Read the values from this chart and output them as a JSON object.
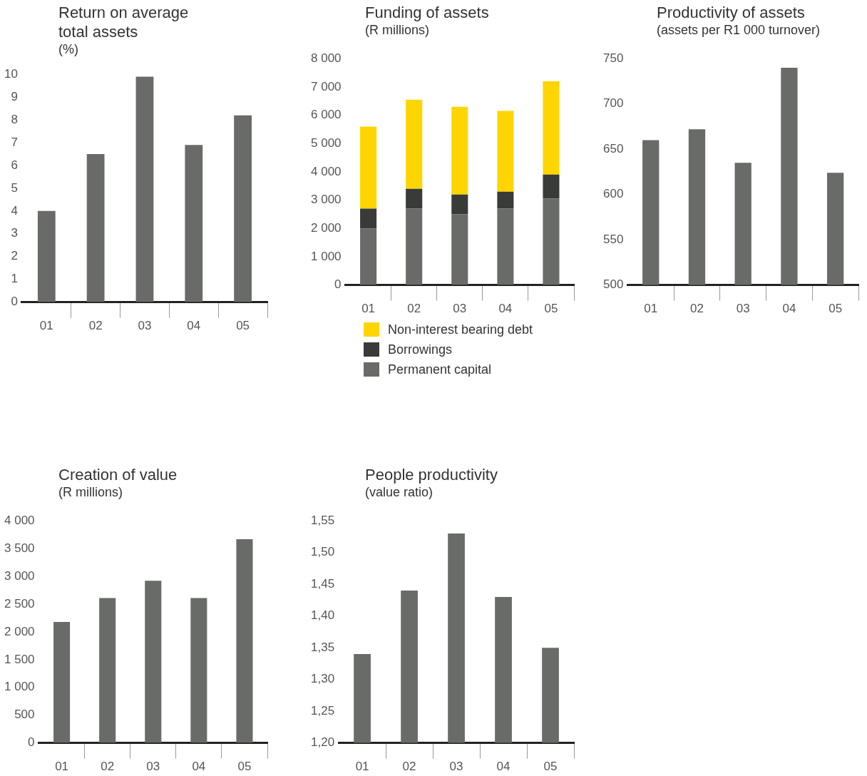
{
  "chart_data": [
    {
      "type": "bar",
      "title": "Return on average total assets",
      "subtitle": "(%)",
      "categories": [
        "01",
        "02",
        "03",
        "04",
        "05"
      ],
      "values": [
        4.0,
        6.5,
        9.9,
        6.9,
        8.2
      ],
      "color": "#696b68",
      "ylim": [
        0,
        10
      ],
      "yticks": [
        0,
        1,
        2,
        3,
        4,
        5,
        6,
        7,
        8,
        9,
        10
      ],
      "grid": false
    },
    {
      "type": "bar",
      "title": "Funding of assets",
      "subtitle": "(R millions)",
      "categories": [
        "01",
        "02",
        "03",
        "04",
        "05"
      ],
      "stacked": true,
      "legend": "bottom",
      "series": [
        {
          "name": "Permanent capital",
          "color": "#696b68",
          "values": [
            2000,
            2700,
            2500,
            2700,
            3050
          ]
        },
        {
          "name": "Borrowings",
          "color": "#393b39",
          "values": [
            700,
            700,
            700,
            600,
            850
          ]
        },
        {
          "name": "Non-interest bearing debt",
          "color": "#ffd500",
          "values": [
            2900,
            3150,
            3100,
            2850,
            3300
          ]
        }
      ],
      "ylim": [
        0,
        8000
      ],
      "yticks": [
        {
          "value": 0,
          "label": "0"
        },
        {
          "value": 1000,
          "label": "1 000"
        },
        {
          "value": 2000,
          "label": "2 000"
        },
        {
          "value": 3000,
          "label": "3 000"
        },
        {
          "value": 4000,
          "label": "4 000"
        },
        {
          "value": 5000,
          "label": "5 000"
        },
        {
          "value": 6000,
          "label": "6 000"
        },
        {
          "value": 7000,
          "label": "7 000"
        },
        {
          "value": 8000,
          "label": "8 000"
        }
      ],
      "grid": false
    },
    {
      "type": "bar",
      "title": "Productivity of assets",
      "subtitle": "(assets per R1 000 turnover)",
      "categories": [
        "01",
        "02",
        "03",
        "04",
        "05"
      ],
      "values": [
        660,
        672,
        635,
        740,
        624
      ],
      "color": "#696b68",
      "ylim": [
        500,
        750
      ],
      "yticks": [
        500,
        550,
        600,
        650,
        700,
        750
      ],
      "grid": false
    },
    {
      "type": "bar",
      "title": "Creation of value",
      "subtitle": "(R millions)",
      "categories": [
        "01",
        "02",
        "03",
        "04",
        "05"
      ],
      "values": [
        2180,
        2610,
        2920,
        2610,
        3670
      ],
      "color": "#696b68",
      "ylim": [
        0,
        4000
      ],
      "yticks": [
        {
          "value": 0,
          "label": "0"
        },
        {
          "value": 500,
          "label": "500"
        },
        {
          "value": 1000,
          "label": "1 000"
        },
        {
          "value": 1500,
          "label": "1 500"
        },
        {
          "value": 2000,
          "label": "2 000"
        },
        {
          "value": 2500,
          "label": "2 500"
        },
        {
          "value": 3000,
          "label": "3 000"
        },
        {
          "value": 3500,
          "label": "3 500"
        },
        {
          "value": 4000,
          "label": "4 000"
        }
      ],
      "grid": false
    },
    {
      "type": "bar",
      "title": "People productivity",
      "subtitle": "(value ratio)",
      "categories": [
        "01",
        "02",
        "03",
        "04",
        "05"
      ],
      "values": [
        1.34,
        1.44,
        1.53,
        1.43,
        1.35
      ],
      "color": "#696b68",
      "ylim": [
        1.2,
        1.55
      ],
      "yticks": [
        {
          "value": 1.2,
          "label": "1,20"
        },
        {
          "value": 1.25,
          "label": "1,25"
        },
        {
          "value": 1.3,
          "label": "1,30"
        },
        {
          "value": 1.35,
          "label": "1,35"
        },
        {
          "value": 1.4,
          "label": "1,40"
        },
        {
          "value": 1.45,
          "label": "1,45"
        },
        {
          "value": 1.5,
          "label": "1,50"
        },
        {
          "value": 1.55,
          "label": "1,55"
        }
      ],
      "grid": false
    }
  ]
}
